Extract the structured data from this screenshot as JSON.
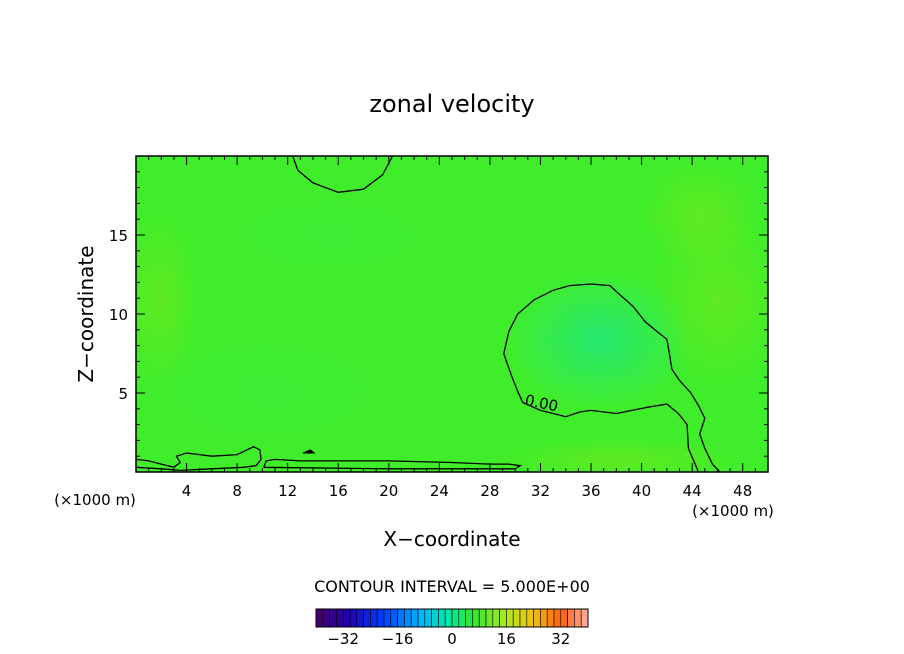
{
  "chart_data": {
    "type": "heatmap",
    "title": "zonal velocity",
    "xlabel": "X−coordinate",
    "ylabel": "Z−coordinate",
    "x_unit_left": "(×1000 m)",
    "x_unit_right": "(×1000 m)",
    "xlim": [
      0,
      50
    ],
    "ylim": [
      0,
      20
    ],
    "x_ticks": [
      4,
      8,
      12,
      16,
      20,
      24,
      28,
      32,
      36,
      40,
      44,
      48
    ],
    "y_ticks": [
      5,
      10,
      15
    ],
    "contour_interval_text": "CONTOUR INTERVAL = 5.000E+00",
    "contour_label": "0.00",
    "colorbar": {
      "range": [
        -40,
        40
      ],
      "ticks": [
        -32,
        -16,
        0,
        16,
        32
      ]
    },
    "field_value_approx": 0,
    "zero_contours": [
      {
        "name": "upper-lobe",
        "points": [
          [
            12.4,
            20
          ],
          [
            12.8,
            19.1
          ],
          [
            14,
            18.3
          ],
          [
            16,
            17.7
          ],
          [
            18,
            17.9
          ],
          [
            19.5,
            18.8
          ],
          [
            20.3,
            20
          ]
        ]
      },
      {
        "name": "right-lobe",
        "points": [
          [
            44.5,
            0
          ],
          [
            43.7,
            1.5
          ],
          [
            43.6,
            3.0
          ],
          [
            42.9,
            3.7
          ],
          [
            42,
            4.3
          ],
          [
            40.5,
            4.1
          ],
          [
            38,
            3.7
          ],
          [
            36,
            3.9
          ],
          [
            35.1,
            3.8
          ],
          [
            34,
            3.5
          ],
          [
            33,
            3.7
          ],
          [
            32,
            3.9
          ],
          [
            30.6,
            4.4
          ],
          [
            30.2,
            5.1
          ],
          [
            29.8,
            5.9
          ],
          [
            29.3,
            7.0
          ],
          [
            29.1,
            7.5
          ],
          [
            29.5,
            8.9
          ],
          [
            30.2,
            10.0
          ],
          [
            31.5,
            10.9
          ],
          [
            33,
            11.5
          ],
          [
            34.3,
            11.8
          ],
          [
            36,
            11.9
          ],
          [
            37.5,
            11.8
          ],
          [
            38.3,
            11.2
          ],
          [
            39.3,
            10.5
          ],
          [
            40.3,
            9.5
          ],
          [
            41.2,
            8.9
          ],
          [
            42,
            8.4
          ],
          [
            42.2,
            7.5
          ],
          [
            42.4,
            6.5
          ],
          [
            43.0,
            5.8
          ],
          [
            43.9,
            5.0
          ],
          [
            44.5,
            4.2
          ],
          [
            45.0,
            3.4
          ],
          [
            44.6,
            2.4
          ],
          [
            45.0,
            1.5
          ],
          [
            45.6,
            0.5
          ],
          [
            46.2,
            0
          ]
        ]
      },
      {
        "name": "bottom-left",
        "points": [
          [
            0,
            0.8
          ],
          [
            1,
            0.7
          ],
          [
            2,
            0.5
          ],
          [
            3,
            0.3
          ],
          [
            3.5,
            0.6
          ],
          [
            3.2,
            1.0
          ],
          [
            4,
            1.2
          ],
          [
            6,
            1.0
          ],
          [
            8,
            1.1
          ],
          [
            9.3,
            1.6
          ],
          [
            9.8,
            1.4
          ],
          [
            9.9,
            0.8
          ],
          [
            9.5,
            0.4
          ],
          [
            8.5,
            0.3
          ],
          [
            6,
            0.2
          ],
          [
            3.5,
            0.1
          ],
          [
            2,
            0.2
          ],
          [
            0,
            0.3
          ]
        ]
      },
      {
        "name": "bottom-middle",
        "points": [
          [
            10.1,
            0.3
          ],
          [
            10.3,
            0.7
          ],
          [
            11,
            0.8
          ],
          [
            13,
            0.7
          ],
          [
            16,
            0.7
          ],
          [
            20,
            0.7
          ],
          [
            25,
            0.6
          ],
          [
            28,
            0.5
          ],
          [
            29.5,
            0.5
          ],
          [
            30.4,
            0.4
          ],
          [
            30,
            0.2
          ],
          [
            20,
            0.2
          ],
          [
            10.1,
            0.3
          ]
        ]
      }
    ]
  }
}
